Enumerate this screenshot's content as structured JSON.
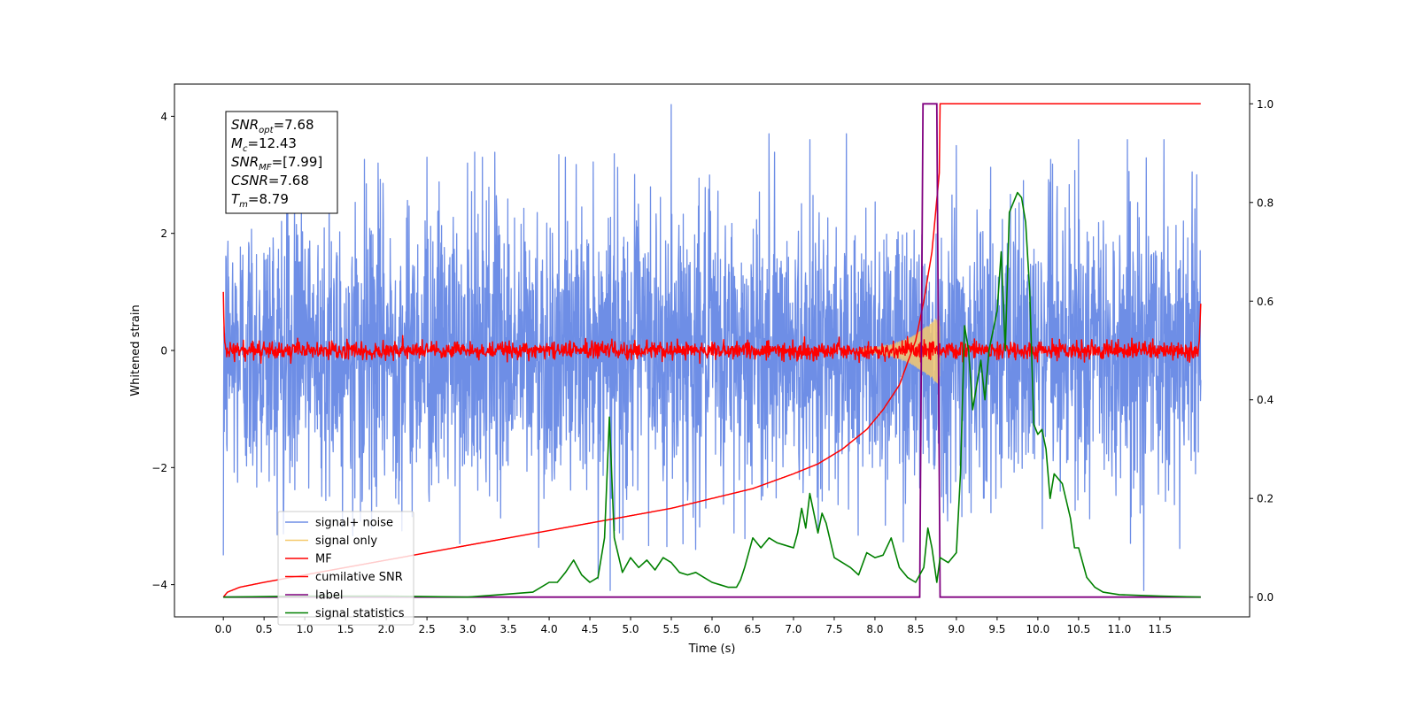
{
  "chart_data": {
    "type": "line",
    "xlabel": "Time (s)",
    "ylabel": "Whitened strain",
    "xlim": [
      -0.6,
      12.6
    ],
    "ylim": [
      -4.55,
      4.55
    ],
    "y2lim": [
      -0.04,
      1.04
    ],
    "x_ticks": [
      0.0,
      0.5,
      1.0,
      1.5,
      2.0,
      2.5,
      3.0,
      3.5,
      4.0,
      4.5,
      5.0,
      5.5,
      6.0,
      6.5,
      7.0,
      7.5,
      8.0,
      8.5,
      9.0,
      9.5,
      10.0,
      10.5,
      11.0,
      11.5
    ],
    "x_tick_labels": [
      "0.0",
      "0.5",
      "1.0",
      "1.5",
      "2.0",
      "2.5",
      "3.0",
      "3.5",
      "4.0",
      "4.5",
      "5.0",
      "5.5",
      "6.0",
      "6.5",
      "7.0",
      "7.5",
      "8.0",
      "8.5",
      "9.0",
      "9.5",
      "10.0",
      "10.5",
      "11.0",
      "11.5"
    ],
    "y_ticks": [
      -4,
      -2,
      0,
      2,
      4
    ],
    "y_tick_labels": [
      "−4",
      "−2",
      "0",
      "2",
      "4"
    ],
    "y2_ticks": [
      0.0,
      0.2,
      0.4,
      0.6,
      0.8,
      1.0
    ],
    "y2_tick_labels": [
      "0.0",
      "0.2",
      "0.4",
      "0.6",
      "0.8",
      "1.0"
    ],
    "grid": false,
    "legend_position": "lower-left",
    "legend": [
      {
        "label": "signal+ noise",
        "color": "#6e8ee6"
      },
      {
        "label": "signal only",
        "color": "#f5c96e"
      },
      {
        "label": "MF",
        "color": "#ff0000"
      },
      {
        "label": "cumilative SNR",
        "color": "#ff0000"
      },
      {
        "label": "label",
        "color": "#800080"
      },
      {
        "label": "signal statistics",
        "color": "#008000"
      }
    ],
    "annotation": {
      "lines": [
        {
          "sym": "SNR",
          "sub": "opt",
          "val": "=7.68"
        },
        {
          "sym": "M",
          "sub": "c",
          "val": "=12.43"
        },
        {
          "sym": "SNR",
          "sub": "MF",
          "val": "=[7.99]"
        },
        {
          "sym": "CSNR",
          "sub": "",
          "val": "=7.68"
        },
        {
          "sym": "T",
          "sub": "m",
          "val": "=8.79"
        }
      ]
    },
    "series": [
      {
        "name": "signal+ noise",
        "axis": "left",
        "color": "#6e8ee6",
        "x_range": [
          0.0,
          12.0
        ],
        "mean": 0.0,
        "envelope": 3.4,
        "peak_x": [
          0.0,
          1.3,
          1.9,
          2.5,
          3.0,
          4.2,
          4.6,
          4.75,
          5.5,
          5.8,
          6.7,
          7.2,
          7.65,
          9.0,
          10.5,
          11.1,
          11.3,
          11.55,
          11.95
        ],
        "peak_y": [
          -3.5,
          3.3,
          3.2,
          3.3,
          3.2,
          3.3,
          -3.9,
          -4.1,
          4.2,
          -3.4,
          3.7,
          3.6,
          3.7,
          3.5,
          3.6,
          3.6,
          -4.1,
          3.6,
          3.0
        ]
      },
      {
        "name": "signal only",
        "axis": "left",
        "color": "#f5c96e",
        "x": [
          7.8,
          8.0,
          8.2,
          8.4,
          8.5,
          8.6,
          8.7,
          8.75,
          8.79,
          8.8
        ],
        "amplitude": [
          0.02,
          0.05,
          0.1,
          0.2,
          0.28,
          0.38,
          0.48,
          0.55,
          0.6,
          0.02
        ]
      },
      {
        "name": "MF",
        "axis": "left",
        "color": "#ff0000",
        "x_range": [
          0.0,
          12.0
        ],
        "mean": 0.0,
        "envelope": 0.22,
        "x": [
          0.0,
          0.01,
          0.02,
          11.98,
          12.0
        ],
        "y": [
          1.0,
          0.3,
          0.1,
          0.1,
          0.8
        ]
      },
      {
        "name": "cumilative SNR",
        "axis": "right",
        "color": "#ff0000",
        "x": [
          0.0,
          0.05,
          0.2,
          0.5,
          1.0,
          1.5,
          2.0,
          2.5,
          3.0,
          3.5,
          4.0,
          4.5,
          5.0,
          5.5,
          6.0,
          6.5,
          7.0,
          7.3,
          7.6,
          7.9,
          8.1,
          8.3,
          8.5,
          8.6,
          8.7,
          8.79,
          8.8,
          12.0
        ],
        "values": [
          0.0,
          0.01,
          0.02,
          0.03,
          0.045,
          0.06,
          0.075,
          0.09,
          0.105,
          0.12,
          0.135,
          0.15,
          0.165,
          0.18,
          0.2,
          0.22,
          0.25,
          0.27,
          0.3,
          0.34,
          0.38,
          0.43,
          0.52,
          0.6,
          0.7,
          0.86,
          1.0,
          1.0
        ]
      },
      {
        "name": "label",
        "axis": "right",
        "color": "#800080",
        "x": [
          0.0,
          8.55,
          8.59,
          8.76,
          8.8,
          12.0
        ],
        "values": [
          0.0,
          0.0,
          1.0,
          1.0,
          0.0,
          0.0
        ]
      },
      {
        "name": "signal statistics",
        "axis": "right",
        "color": "#008000",
        "x": [
          0.0,
          1.0,
          2.0,
          3.0,
          3.4,
          3.8,
          4.0,
          4.1,
          4.2,
          4.3,
          4.4,
          4.5,
          4.6,
          4.68,
          4.74,
          4.8,
          4.9,
          5.0,
          5.1,
          5.2,
          5.3,
          5.4,
          5.5,
          5.6,
          5.7,
          5.8,
          5.9,
          6.0,
          6.1,
          6.2,
          6.3,
          6.35,
          6.4,
          6.5,
          6.6,
          6.7,
          6.8,
          6.9,
          7.0,
          7.05,
          7.1,
          7.15,
          7.2,
          7.3,
          7.35,
          7.4,
          7.5,
          7.6,
          7.7,
          7.8,
          7.9,
          8.0,
          8.1,
          8.2,
          8.3,
          8.4,
          8.5,
          8.6,
          8.65,
          8.7,
          8.76,
          8.8,
          8.9,
          9.0,
          9.05,
          9.1,
          9.15,
          9.2,
          9.3,
          9.35,
          9.4,
          9.5,
          9.55,
          9.6,
          9.65,
          9.7,
          9.75,
          9.8,
          9.85,
          9.9,
          9.95,
          10.0,
          10.05,
          10.1,
          10.15,
          10.2,
          10.3,
          10.4,
          10.45,
          10.5,
          10.6,
          10.7,
          10.8,
          11.0,
          11.5,
          12.0
        ],
        "values": [
          0.0,
          0.002,
          0.002,
          0.0,
          0.005,
          0.01,
          0.03,
          0.03,
          0.05,
          0.075,
          0.045,
          0.03,
          0.04,
          0.12,
          0.365,
          0.12,
          0.05,
          0.08,
          0.06,
          0.075,
          0.055,
          0.08,
          0.07,
          0.05,
          0.045,
          0.05,
          0.04,
          0.03,
          0.025,
          0.02,
          0.02,
          0.035,
          0.06,
          0.12,
          0.1,
          0.12,
          0.11,
          0.105,
          0.1,
          0.13,
          0.18,
          0.14,
          0.21,
          0.13,
          0.17,
          0.15,
          0.08,
          0.07,
          0.06,
          0.045,
          0.09,
          0.08,
          0.085,
          0.12,
          0.06,
          0.04,
          0.03,
          0.06,
          0.14,
          0.1,
          0.03,
          0.08,
          0.07,
          0.09,
          0.25,
          0.55,
          0.5,
          0.38,
          0.48,
          0.4,
          0.5,
          0.58,
          0.7,
          0.5,
          0.78,
          0.8,
          0.82,
          0.81,
          0.76,
          0.62,
          0.35,
          0.33,
          0.34,
          0.3,
          0.2,
          0.25,
          0.23,
          0.16,
          0.1,
          0.1,
          0.04,
          0.02,
          0.01,
          0.005,
          0.002,
          0.0
        ]
      }
    ]
  }
}
